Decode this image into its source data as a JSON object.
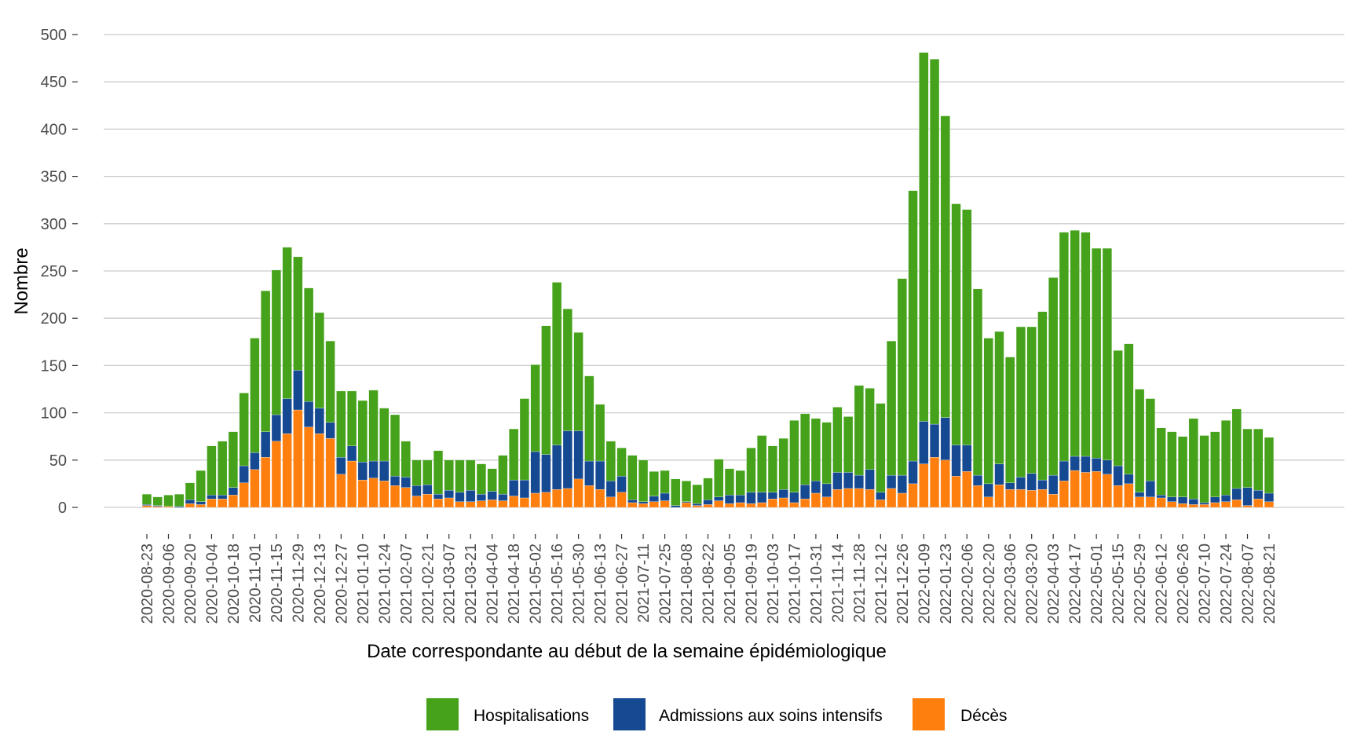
{
  "chart_data": {
    "type": "bar",
    "stacked": true,
    "xlabel": "Date correspondante au début de la semaine épidémiologique",
    "ylabel": "Nombre",
    "ylim": [
      0,
      500
    ],
    "yticks": [
      0,
      50,
      100,
      150,
      200,
      250,
      300,
      350,
      400,
      450,
      500
    ],
    "grid": "horizontal",
    "legend_position": "bottom",
    "categories": [
      "2020-08-23",
      "2020-08-30",
      "2020-09-06",
      "2020-09-13",
      "2020-09-20",
      "2020-09-27",
      "2020-10-04",
      "2020-10-11",
      "2020-10-18",
      "2020-10-25",
      "2020-11-01",
      "2020-11-08",
      "2020-11-15",
      "2020-11-22",
      "2020-11-29",
      "2020-12-06",
      "2020-12-13",
      "2020-12-20",
      "2020-12-27",
      "2021-01-03",
      "2021-01-10",
      "2021-01-17",
      "2021-01-24",
      "2021-01-31",
      "2021-02-07",
      "2021-02-14",
      "2021-02-21",
      "2021-02-28",
      "2021-03-07",
      "2021-03-14",
      "2021-03-21",
      "2021-03-28",
      "2021-04-04",
      "2021-04-11",
      "2021-04-18",
      "2021-04-25",
      "2021-05-02",
      "2021-05-09",
      "2021-05-16",
      "2021-05-23",
      "2021-05-30",
      "2021-06-06",
      "2021-06-13",
      "2021-06-20",
      "2021-06-27",
      "2021-07-04",
      "2021-07-11",
      "2021-07-18",
      "2021-07-25",
      "2021-08-01",
      "2021-08-08",
      "2021-08-15",
      "2021-08-22",
      "2021-08-29",
      "2021-09-05",
      "2021-09-12",
      "2021-09-19",
      "2021-09-26",
      "2021-10-03",
      "2021-10-10",
      "2021-10-17",
      "2021-10-24",
      "2021-10-31",
      "2021-11-07",
      "2021-11-14",
      "2021-11-21",
      "2021-11-28",
      "2021-12-05",
      "2021-12-12",
      "2021-12-19",
      "2021-12-26",
      "2022-01-02",
      "2022-01-09",
      "2022-01-16",
      "2022-01-23",
      "2022-01-30",
      "2022-02-06",
      "2022-02-13",
      "2022-02-20",
      "2022-02-27",
      "2022-03-06",
      "2022-03-13",
      "2022-03-20",
      "2022-03-27",
      "2022-04-03",
      "2022-04-10",
      "2022-04-17",
      "2022-04-24",
      "2022-05-01",
      "2022-05-08",
      "2022-05-15",
      "2022-05-22",
      "2022-05-29",
      "2022-06-05",
      "2022-06-12",
      "2022-06-19",
      "2022-06-26",
      "2022-07-03",
      "2022-07-10",
      "2022-07-17",
      "2022-07-24",
      "2022-07-31",
      "2022-08-07",
      "2022-08-14",
      "2022-08-21"
    ],
    "tick_labels": [
      "2020-08-23",
      "2020-09-06",
      "2020-09-20",
      "2020-10-04",
      "2020-10-18",
      "2020-11-01",
      "2020-11-15",
      "2020-11-29",
      "2020-12-13",
      "2020-12-27",
      "2021-01-10",
      "2021-01-24",
      "2021-02-07",
      "2021-02-21",
      "2021-03-07",
      "2021-03-21",
      "2021-04-04",
      "2021-04-18",
      "2021-05-02",
      "2021-05-16",
      "2021-05-30",
      "2021-06-13",
      "2021-06-27",
      "2021-07-11",
      "2021-07-25",
      "2021-08-08",
      "2021-08-22",
      "2021-09-05",
      "2021-09-19",
      "2021-10-03",
      "2021-10-17",
      "2021-10-31",
      "2021-11-14",
      "2021-11-28",
      "2021-12-12",
      "2021-12-26",
      "2022-01-09",
      "2022-01-23",
      "2022-02-06",
      "2022-02-20",
      "2022-03-06",
      "2022-03-20",
      "2022-04-03",
      "2022-04-17",
      "2022-05-01",
      "2022-05-15",
      "2022-05-29",
      "2022-06-12",
      "2022-06-26",
      "2022-07-10",
      "2022-07-24",
      "2022-08-07",
      "2022-08-21"
    ],
    "series": [
      {
        "name": "Décès",
        "color": "#ff7f0e",
        "values": [
          2,
          1,
          1,
          0,
          4,
          3,
          9,
          9,
          13,
          26,
          40,
          53,
          70,
          78,
          103,
          85,
          78,
          73,
          35,
          49,
          29,
          31,
          28,
          23,
          21,
          12,
          14,
          9,
          10,
          6,
          6,
          7,
          8,
          7,
          12,
          10,
          15,
          16,
          19,
          20,
          30,
          23,
          19,
          11,
          16,
          5,
          4,
          6,
          7,
          0,
          5,
          2,
          3,
          7,
          4,
          5,
          4,
          5,
          9,
          10,
          5,
          9,
          15,
          11,
          19,
          20,
          20,
          19,
          8,
          20,
          15,
          25,
          46,
          53,
          50,
          33,
          38,
          23,
          11,
          24,
          19,
          19,
          18,
          19,
          14,
          28,
          39,
          37,
          38,
          35,
          23,
          25,
          11,
          11,
          10,
          6,
          4,
          3,
          3,
          5,
          6,
          8,
          2,
          9,
          6
        ]
      },
      {
        "name": "Admissions aux soins intensifs",
        "color": "#154992",
        "values": [
          1,
          1,
          0,
          1,
          4,
          3,
          4,
          4,
          8,
          18,
          18,
          27,
          28,
          37,
          42,
          27,
          27,
          17,
          18,
          16,
          19,
          18,
          21,
          10,
          11,
          11,
          10,
          5,
          8,
          10,
          12,
          7,
          9,
          7,
          17,
          19,
          44,
          40,
          47,
          61,
          51,
          26,
          30,
          17,
          17,
          3,
          2,
          6,
          8,
          2,
          1,
          2,
          5,
          4,
          9,
          8,
          12,
          11,
          7,
          9,
          11,
          15,
          13,
          14,
          18,
          17,
          14,
          21,
          8,
          14,
          19,
          24,
          45,
          35,
          45,
          33,
          28,
          11,
          14,
          22,
          7,
          13,
          18,
          10,
          20,
          21,
          15,
          17,
          14,
          15,
          21,
          10,
          5,
          17,
          3,
          5,
          7,
          6,
          2,
          6,
          7,
          12,
          19,
          9,
          9
        ]
      },
      {
        "name": "Hospitalisations",
        "color": "#45a21a",
        "values": [
          11,
          9,
          12,
          13,
          18,
          33,
          52,
          57,
          59,
          77,
          121,
          149,
          153,
          160,
          120,
          120,
          101,
          86,
          70,
          58,
          65,
          75,
          56,
          65,
          38,
          27,
          26,
          46,
          32,
          34,
          32,
          32,
          24,
          41,
          54,
          86,
          92,
          136,
          172,
          129,
          104,
          90,
          60,
          42,
          30,
          47,
          44,
          26,
          24,
          28,
          22,
          20,
          23,
          40,
          28,
          26,
          47,
          60,
          49,
          54,
          76,
          75,
          66,
          65,
          69,
          59,
          95,
          86,
          94,
          142,
          208,
          286,
          390,
          386,
          319,
          255,
          249,
          197,
          154,
          140,
          133,
          159,
          155,
          178,
          209,
          242,
          239,
          237,
          222,
          224,
          122,
          138,
          109,
          87,
          71,
          69,
          64,
          85,
          71,
          69,
          79,
          84,
          62,
          65,
          59
        ]
      }
    ]
  }
}
